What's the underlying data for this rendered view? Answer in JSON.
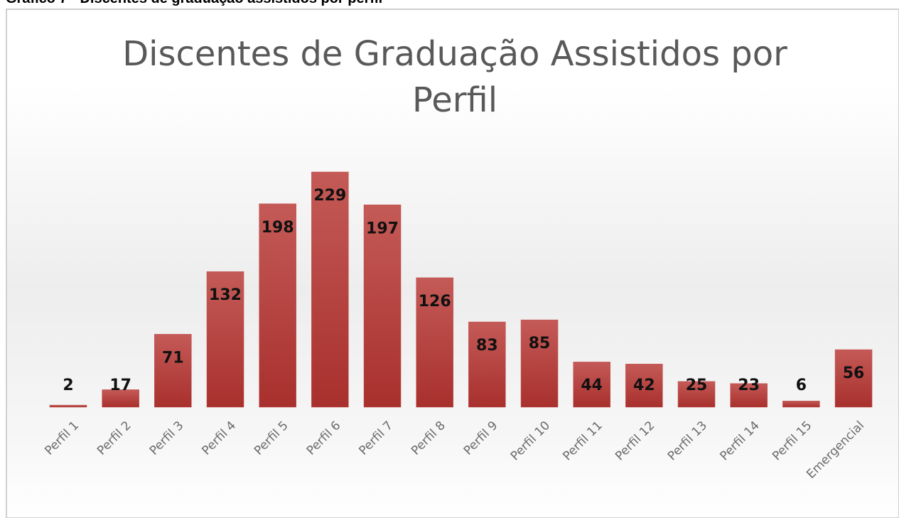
{
  "caption": "Gráfico 7 - Discentes de graduação assistidos por perfil",
  "chart_data": {
    "type": "bar",
    "title": [
      "Discentes de Graduação Assistidos por",
      "Perfil"
    ],
    "categories": [
      "Perfil 1",
      "Perfil 2",
      "Perfil 3",
      "Perfil 4",
      "Perfil 5",
      "Perfil 6",
      "Perfil 7",
      "Perfil 8",
      "Perfil 9",
      "Perfil 10",
      "Perfil 11",
      "Perfil 12",
      "Perfil 13",
      "Perfil 14",
      "Perfil 15",
      "Emergencial"
    ],
    "values": [
      2,
      17,
      71,
      132,
      198,
      229,
      197,
      126,
      83,
      85,
      44,
      42,
      25,
      23,
      6,
      56
    ],
    "color": "#c0504d"
  }
}
